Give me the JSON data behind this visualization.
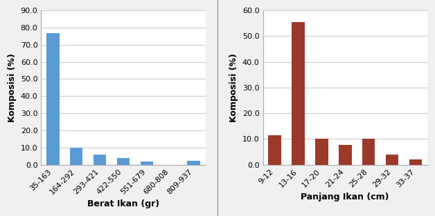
{
  "left": {
    "categories": [
      "35-163",
      "164-292",
      "293-421",
      "422-550",
      "551-679",
      "680-808",
      "809-937"
    ],
    "values": [
      76.8,
      10.0,
      6.0,
      4.0,
      2.0,
      0.0,
      2.2
    ],
    "bar_color": "#5b9bd5",
    "xlabel": "Berat Ikan (gr)",
    "ylabel": "Komposisi (%)",
    "ylim": [
      0,
      90
    ],
    "yticks": [
      0.0,
      10.0,
      20.0,
      30.0,
      40.0,
      50.0,
      60.0,
      70.0,
      80.0,
      90.0
    ]
  },
  "right": {
    "categories": [
      "9-12",
      "13-16",
      "17-20",
      "21-24",
      "25-28",
      "29-32",
      "33-37"
    ],
    "values": [
      11.5,
      55.5,
      10.0,
      7.7,
      10.0,
      4.0,
      2.0
    ],
    "bar_color": "#9b3a2a",
    "xlabel": "Panjang Ikan (cm)",
    "ylabel": "Komposisi (%)",
    "ylim": [
      0,
      60
    ],
    "yticks": [
      0.0,
      10.0,
      20.0,
      30.0,
      40.0,
      50.0,
      60.0
    ]
  },
  "plot_bg_color": "#ffffff",
  "fig_bg_color": "#f0f0f0",
  "grid_color": "#cccccc",
  "label_fontsize": 9,
  "tick_fontsize": 8,
  "xlabel_fontweight": "bold",
  "bar_width": 0.55
}
